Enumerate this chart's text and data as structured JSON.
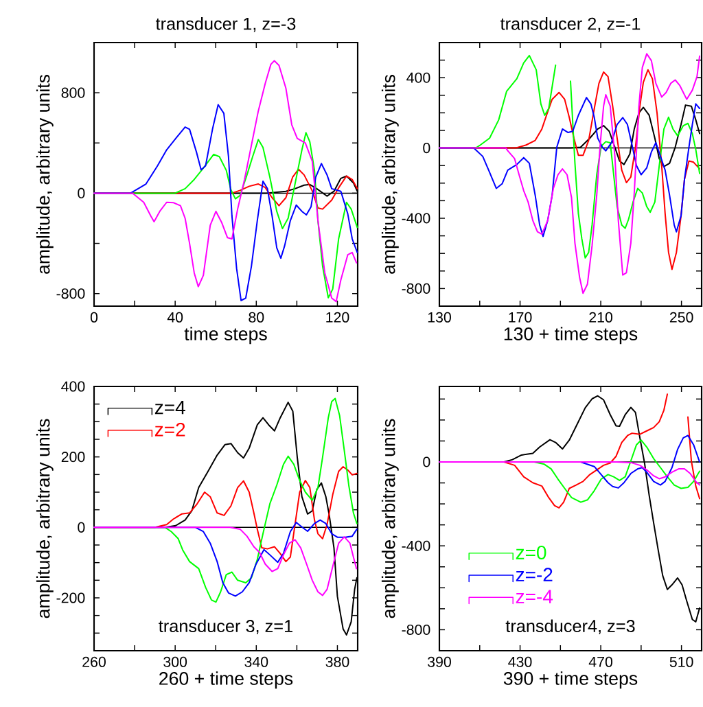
{
  "chart_data": [
    {
      "type": "line",
      "title": "transducer 1, z=-3",
      "xlabel": "time steps",
      "ylabel": "amplitude, arbitrary units",
      "xlim": [
        0,
        130
      ],
      "ylim": [
        -900,
        1200
      ],
      "xticks": [
        0,
        {
          "value": 20,
          "label": null
        },
        40,
        {
          "value": 60,
          "label": null
        },
        80,
        {
          "value": 100,
          "label": null
        },
        120
      ],
      "yticks": [
        -800,
        {
          "value": -400,
          "label": null
        },
        0,
        {
          "value": 400,
          "label": null
        },
        800
      ],
      "ref_lines": [
        {
          "axis": "y",
          "value": 0,
          "color": "#000000"
        }
      ],
      "series": [
        {
          "color": "#000000",
          "x": [
            0,
            85,
            94.6,
            99.1,
            103.6,
            106.4,
            109.8,
            114.9,
            118.3,
            121.7,
            124.5,
            127.9,
            129.8
          ],
          "values": [
            0,
            0,
            15,
            36,
            64,
            69,
            36,
            -24,
            15,
            118,
            136,
            82,
            15
          ]
        },
        {
          "color": "#ff0000",
          "x": [
            0,
            68,
            72,
            76.5,
            81,
            84.4,
            87.8,
            91.2,
            94.6,
            97.9,
            100.8,
            103.6,
            107.6,
            110.4,
            112.7,
            117.2,
            121.1,
            124.5,
            127.3,
            129.8
          ],
          "values": [
            0,
            0,
            22,
            55,
            73,
            45,
            -36,
            -100,
            -36,
            127,
            191,
            145,
            18,
            -118,
            -127,
            -55,
            55,
            136,
            109,
            36
          ]
        },
        {
          "color": "#00ff00",
          "x": [
            0,
            40,
            44.9,
            49.4,
            53.9,
            59,
            61.8,
            65.2,
            67.5,
            69.7,
            72,
            75.4,
            78.2,
            81,
            83.3,
            86.7,
            90.1,
            92.9,
            95.7,
            99.1,
            102.5,
            104.5,
            106.4,
            108.7,
            110.4,
            112.7,
            115.5,
            117.7,
            120.6,
            124.5,
            126.8,
            129.8
          ],
          "values": [
            0,
            0,
            36,
            109,
            200,
            309,
            291,
            182,
            27,
            -45,
            -18,
            145,
            291,
            427,
            364,
            127,
            -145,
            -282,
            -200,
            73,
            345,
            482,
            409,
            182,
            -218,
            -582,
            -833,
            -764,
            -364,
            -73,
            -127,
            -273
          ]
        },
        {
          "color": "#0000ff",
          "x": [
            0,
            18,
            25.6,
            31.3,
            35.8,
            40.3,
            44.9,
            47.1,
            50.5,
            52.8,
            55,
            58.4,
            61.2,
            64,
            66.3,
            68,
            70.3,
            72.5,
            74.8,
            77.6,
            80.5,
            83.3,
            85.5,
            87.8,
            90.1,
            92.1,
            94,
            96.8,
            99.7,
            102.5,
            104.7,
            107,
            109.3,
            112.1,
            114.9,
            117.2,
            121.7,
            125.1,
            127.3,
            129.8
          ],
          "values": [
            0,
            0,
            73,
            218,
            345,
            436,
            527,
            509,
            327,
            185,
            218,
            509,
            705,
            636,
            291,
            -182,
            -600,
            -855,
            -836,
            -582,
            -218,
            95,
            36,
            -182,
            -436,
            -518,
            -418,
            -218,
            -95,
            -145,
            -173,
            -109,
            127,
            236,
            145,
            36,
            15,
            -164,
            -364,
            -473
          ]
        },
        {
          "color": "#ff00ff",
          "x": [
            0,
            19,
            24.5,
            28,
            29.6,
            32.4,
            35.8,
            39.2,
            42.6,
            44.9,
            47.1,
            49.4,
            51.4,
            53.9,
            57.3,
            60.1,
            63,
            65.8,
            68,
            70.8,
            74.2,
            77.6,
            81,
            84.4,
            87.2,
            88.9,
            91.2,
            94.6,
            97.5,
            100.2,
            104.2,
            107.6,
            110.4,
            113.8,
            117.2,
            119.4,
            121.7,
            125.1,
            127.3,
            129.4
          ],
          "values": [
            0,
            0,
            -73,
            -182,
            -227,
            -145,
            -73,
            -76,
            -100,
            -200,
            -400,
            -636,
            -745,
            -655,
            -255,
            -145,
            -236,
            -355,
            -364,
            -127,
            109,
            382,
            655,
            873,
            1027,
            1055,
            1018,
            836,
            545,
            436,
            400,
            255,
            -218,
            -636,
            -836,
            -864,
            -691,
            -491,
            -473,
            -555
          ]
        }
      ]
    },
    {
      "type": "line",
      "title": "transducer 2, z=-1",
      "xlabel": "130 + time steps",
      "ylabel": "amplitude, arbitrary units",
      "xlim": [
        130,
        260
      ],
      "ylim": [
        -900,
        600
      ],
      "xticks": [
        130,
        {
          "value": 150,
          "label": null
        },
        170,
        {
          "value": 190,
          "label": null
        },
        210,
        {
          "value": 230,
          "label": null
        },
        250
      ],
      "yticks": [
        -800,
        {
          "value": -700,
          "label": null
        },
        {
          "value": -600,
          "label": null
        },
        {
          "value": -500,
          "label": null
        },
        -400,
        {
          "value": -300,
          "label": null
        },
        {
          "value": -200,
          "label": null
        },
        {
          "value": -100,
          "label": null
        },
        0,
        {
          "value": 100,
          "label": null
        },
        {
          "value": 200,
          "label": null
        },
        {
          "value": 300,
          "label": null
        },
        400,
        {
          "value": 500,
          "label": null
        }
      ],
      "ref_lines": [
        {
          "axis": "y",
          "value": 0,
          "color": "#000000"
        }
      ],
      "series": [
        {
          "color": "#000000",
          "x": [
            130,
            195,
            200,
            204.6,
            208.5,
            211.4,
            214.2,
            217,
            219.3,
            221.5,
            224.4,
            226.6,
            228.9,
            231.1,
            234,
            236.8,
            239,
            241.3,
            244.1,
            246.9,
            249.8,
            252,
            254.9,
            257.1,
            259
          ],
          "values": [
            0,
            0,
            4,
            56,
            108,
            127,
            95,
            4,
            -74,
            -94,
            -35,
            108,
            199,
            231,
            186,
            56,
            -61,
            -106,
            -87,
            4,
            134,
            244,
            238,
            160,
            82
          ]
        },
        {
          "color": "#ff0000",
          "x": [
            130,
            168,
            173,
            177.5,
            180.8,
            183.1,
            185.9,
            189.3,
            192.1,
            194.4,
            196.7,
            198.9,
            201.2,
            204,
            206.8,
            209.1,
            211.4,
            213.6,
            215.9,
            218.1,
            220.4,
            222.7,
            224.9,
            227.2,
            229.4,
            231.1,
            233.4,
            235.6,
            237.9,
            240.2,
            241.9,
            243.6,
            245.3,
            247.5,
            249.8,
            251.5,
            253.7,
            256,
            259
          ],
          "values": [
            0,
            0,
            17,
            43,
            108,
            186,
            277,
            316,
            277,
            173,
            56,
            -42,
            -42,
            43,
            225,
            368,
            432,
            406,
            238,
            56,
            -126,
            -197,
            -165,
            4,
            238,
            374,
            445,
            394,
            199,
            -100,
            -373,
            -594,
            -691,
            -594,
            -386,
            -178,
            -74,
            -81,
            -119
          ]
        },
        {
          "color": "#00ff00",
          "x": [
            130,
            148,
            150.3,
            154.9,
            159.4,
            163.3,
            168.4,
            171.8,
            174.6,
            178,
            180.3,
            182.2,
            184.2,
            187.6,
            189.9,
            191.8,
            193.8,
            195,
            197.2,
            198.9,
            200.6,
            202.3,
            204,
            205.7,
            208,
            210.2,
            212.5,
            214.7,
            216.4,
            218.1,
            220.4,
            222.1,
            223.8,
            226,
            228.3,
            230.6,
            232.8,
            234.5,
            236.8,
            239,
            241.3,
            243.6,
            245.8,
            248.1,
            250.9,
            253.2,
            255.4,
            257.1,
            259
          ],
          "values": [
            0,
            0,
            17,
            56,
            160,
            322,
            394,
            484,
            526,
            445,
            251,
            186,
            225,
            471,
            null,
            null,
            null,
            380,
            -87,
            -373,
            -516,
            -626,
            -594,
            -438,
            -152,
            10,
            36,
            30,
            -152,
            -334,
            -438,
            -457,
            -405,
            -308,
            -230,
            -256,
            -334,
            -366,
            -308,
            -100,
            108,
            175,
            108,
            69,
            127,
            140,
            82,
            -9,
            -145
          ]
        },
        {
          "color": "#0000ff",
          "x": [
            130,
            147,
            151.5,
            154.9,
            158.2,
            161.1,
            163.9,
            168.4,
            171.8,
            174.6,
            177.5,
            179.7,
            181.4,
            183.7,
            185.9,
            188.2,
            191,
            193.8,
            196.1,
            198.9,
            202.9,
            205.1,
            206.8,
            208.5,
            210.8,
            212.5,
            215.3,
            218.1,
            220.9,
            223.2,
            225.5,
            227.7,
            230,
            232.8,
            235.1,
            237.3,
            239.6,
            241.9,
            244.1,
            246.4,
            247.5,
            249.8,
            251.5,
            253.7,
            255.4,
            257.1,
            259
          ],
          "values": [
            0,
            0,
            -48,
            -139,
            -230,
            -204,
            -126,
            -94,
            -55,
            -87,
            -269,
            -438,
            -503,
            -412,
            -269,
            4,
            108,
            88,
            95,
            186,
            287,
            251,
            173,
            56,
            4,
            -16,
            30,
            134,
            173,
            134,
            17,
            -100,
            -152,
            -113,
            -22,
            30,
            -48,
            -126,
            -269,
            -438,
            -477,
            -386,
            -178,
            4,
            134,
            251,
            225
          ]
        },
        {
          "color": "#ff00ff",
          "x": [
            130,
            163,
            163.9,
            167.3,
            169.5,
            171.8,
            174,
            176.3,
            178.6,
            180.8,
            183.7,
            186.5,
            188.8,
            191,
            193.3,
            195.5,
            197.2,
            199.5,
            201.2,
            203.4,
            205.7,
            208,
            209.7,
            211.4,
            212.5,
            214.7,
            217,
            218.7,
            220.9,
            222.7,
            224.9,
            226.6,
            228.9,
            230.6,
            232.8,
            235.1,
            237.3,
            240.2,
            242.4,
            244.7,
            246.9,
            249.2,
            252.6,
            255.4,
            257.7,
            259
          ],
          "values": [
            0,
            0,
            -16,
            -61,
            -152,
            -243,
            -308,
            -412,
            -477,
            -490,
            -412,
            -230,
            -152,
            -119,
            -152,
            -282,
            -542,
            -736,
            -827,
            -775,
            -555,
            -269,
            17,
            238,
            303,
            238,
            -48,
            -412,
            -723,
            -710,
            -542,
            -256,
            238,
            458,
            536,
            497,
            368,
            290,
            316,
            368,
            387,
            355,
            277,
            329,
            406,
            523
          ]
        }
      ]
    },
    {
      "type": "line",
      "title": "transducer 3, z=1",
      "xlabel": "260 + time steps",
      "ylabel": "amplitude, arbitrary units",
      "xlim": [
        260,
        390
      ],
      "ylim": [
        -350,
        400
      ],
      "legend": "top left",
      "xticks": [
        260,
        {
          "value": 280,
          "label": null
        },
        300,
        {
          "value": 320,
          "label": null
        },
        340,
        {
          "value": 360,
          "label": null
        },
        380
      ],
      "yticks": [
        {
          "value": -300,
          "label": null
        },
        {
          "value": -250,
          "label": null
        },
        -200,
        {
          "value": -150,
          "label": null
        },
        {
          "value": -100,
          "label": null
        },
        {
          "value": -50,
          "label": null
        },
        0,
        {
          "value": 50,
          "label": null
        },
        {
          "value": 100,
          "label": null
        },
        {
          "value": 150,
          "label": null
        },
        200,
        {
          "value": 250,
          "label": null
        },
        {
          "value": 300,
          "label": null
        },
        {
          "value": 350,
          "label": null
        },
        400
      ],
      "ref_lines": [
        {
          "axis": "y",
          "value": 0,
          "color": "#000000"
        }
      ],
      "series": [
        {
          "name": "z=4",
          "color": "#000000",
          "x": [
            260,
            295,
            300.3,
            304.9,
            308.2,
            311.6,
            316.2,
            320.7,
            324.6,
            327.5,
            330.8,
            333.7,
            336.5,
            340.5,
            343.3,
            346.1,
            349,
            351.8,
            355.7,
            358,
            360.2,
            362.5,
            365.3,
            367.6,
            369.8,
            372.1,
            374.3,
            376,
            378.3,
            380,
            382.8,
            384.5,
            386.8,
            388.5,
            389.6
          ],
          "values": [
            0,
            0,
            5,
            21,
            47,
            113,
            159,
            205,
            235,
            238,
            212,
            197,
            225,
            291,
            311,
            291,
            274,
            311,
            355,
            330,
            199,
            87,
            38,
            47,
            107,
            126,
            87,
            34,
            -58,
            -196,
            -288,
            -305,
            -268,
            -176,
            -143
          ]
        },
        {
          "name": "z=2",
          "color": "#ff0000",
          "x": [
            260,
            290,
            295.8,
            299.2,
            303.2,
            307.1,
            310.5,
            314.5,
            317.3,
            320.7,
            324.1,
            327.5,
            330.8,
            333.7,
            336.5,
            338.8,
            340.5,
            342.7,
            345.5,
            349,
            351.8,
            354.6,
            356.8,
            359.1,
            361.4,
            364.2,
            366.4,
            368.7,
            370.4,
            372.7,
            374.9,
            377.7,
            380.6,
            382.8,
            385.1,
            387.3,
            389.6
          ],
          "values": [
            0,
            0,
            8,
            24,
            38,
            41,
            64,
            100,
            87,
            41,
            34,
            61,
            113,
            132,
            100,
            41,
            -5,
            -58,
            -61,
            -55,
            -74,
            -97,
            -84,
            8,
            100,
            133,
            113,
            21,
            -18,
            -32,
            8,
            93,
            159,
            172,
            163,
            149,
            153
          ]
        },
        {
          "color": "#00ff00",
          "x": [
            260,
            295,
            298.1,
            301.5,
            303.7,
            307.1,
            311.6,
            315,
            317.9,
            320.1,
            322.4,
            325.2,
            328,
            330.8,
            334.8,
            337.6,
            340.5,
            343.3,
            346.7,
            350.1,
            353.4,
            355.7,
            358.5,
            361.4,
            364.2,
            367.6,
            370.4,
            372.7,
            375.5,
            377.2,
            378.9,
            381.1,
            383.4,
            385.6,
            387.9,
            389.6
          ],
          "values": [
            0,
            0,
            -12,
            -32,
            -64,
            -97,
            -117,
            -170,
            -206,
            -212,
            -183,
            -134,
            -127,
            -150,
            -157,
            -143,
            -91,
            -18,
            67,
            120,
            179,
            202,
            179,
            133,
            100,
            77,
            113,
            199,
            311,
            357,
            366,
            317,
            218,
            120,
            41,
            11
          ]
        },
        {
          "color": "#0000ff",
          "x": [
            260,
            310,
            313.9,
            317.3,
            320.7,
            323.5,
            326.3,
            329.7,
            333.1,
            336.5,
            339.9,
            343.8,
            346.7,
            350.6,
            353.4,
            356.8,
            359.7,
            362.5,
            365.3,
            368.7,
            371.5,
            374.3,
            377.2,
            380,
            383.9,
            387.3,
            389.6
          ],
          "values": [
            0,
            0,
            -12,
            -45,
            -97,
            -157,
            -186,
            -195,
            -183,
            -157,
            -104,
            -63,
            -78,
            -99,
            -74,
            -12,
            14,
            1,
            -11,
            11,
            21,
            11,
            -18,
            -28,
            -28,
            -25,
            -5
          ]
        },
        {
          "color": "#ff00ff",
          "x": [
            260,
            327,
            332,
            335.4,
            338.8,
            341.6,
            344.4,
            347.8,
            350.6,
            353.4,
            356.3,
            359.1,
            361.9,
            364.8,
            367.6,
            370.4,
            372.7,
            374.9,
            377.7,
            380.6,
            383.4,
            386.2,
            387.9,
            389.4
          ],
          "values": [
            0,
            0,
            -5,
            -25,
            -55,
            -71,
            -104,
            -125,
            -117,
            -78,
            -45,
            -35,
            -58,
            -104,
            -150,
            -183,
            -193,
            -176,
            -111,
            -45,
            -27,
            -45,
            -84,
            -117
          ]
        }
      ]
    },
    {
      "type": "line",
      "title": "transducer4, z=3",
      "xlabel": "390 + time steps",
      "ylabel": "amplitude, arbitrary units",
      "xlim": [
        390,
        520
      ],
      "ylim": [
        -900,
        360
      ],
      "legend": "bottom left",
      "xticks": [
        390,
        {
          "value": 410,
          "label": null
        },
        430,
        {
          "value": 450,
          "label": null
        },
        470,
        {
          "value": 490,
          "label": null
        },
        510
      ],
      "yticks": [
        -800,
        {
          "value": -700,
          "label": null
        },
        {
          "value": -600,
          "label": null
        },
        {
          "value": -500,
          "label": null
        },
        -400,
        {
          "value": -300,
          "label": null
        },
        {
          "value": -200,
          "label": null
        },
        {
          "value": -100,
          "label": null
        },
        0,
        {
          "value": 100,
          "label": null
        },
        {
          "value": 200,
          "label": null
        },
        {
          "value": 300,
          "label": null
        }
      ],
      "ref_lines": [
        {
          "axis": "y",
          "value": 0,
          "color": "#000000"
        }
      ],
      "series": [
        {
          "color": "#000000",
          "x": [
            390,
            422,
            426.2,
            430.7,
            436.3,
            439.7,
            444.8,
            447.6,
            451,
            454.4,
            457.8,
            462.3,
            465.7,
            468.5,
            471.4,
            474.7,
            477.6,
            479.3,
            482.1,
            484.9,
            487.2,
            489.4,
            491.7,
            494,
            496.2,
            498.5,
            500.7,
            503,
            505.3,
            508.1,
            510.3,
            512.6,
            515.4,
            517.1,
            519
          ],
          "values": [
            0,
            0,
            11,
            33,
            41,
            71,
            106,
            93,
            62,
            104,
            170,
            258,
            301,
            315,
            296,
            225,
            172,
            170,
            225,
            260,
            236,
            115,
            -5,
            -159,
            -290,
            -422,
            -542,
            -608,
            -586,
            -553,
            -586,
            -663,
            -751,
            -762,
            -696
          ]
        },
        {
          "color": "#ff0000",
          "x": [
            390,
            422,
            427.3,
            431.8,
            436.3,
            440.8,
            444.2,
            447.1,
            449.3,
            451.6,
            454.4,
            457.8,
            461.2,
            464.6,
            468,
            471.4,
            474.7,
            477.6,
            480.4,
            483.3,
            485.5,
            489.4,
            492.8,
            496.2,
            499,
            501.3,
            503,
            503.9,
            507.5,
            510.9,
            513.2,
            514.9,
            517.1,
            519
          ],
          "values": [
            0,
            0,
            -16,
            -71,
            -99,
            -115,
            -170,
            -208,
            -219,
            -192,
            -126,
            -110,
            -93,
            -60,
            -38,
            -16,
            -5,
            27,
            93,
            126,
            137,
            132,
            148,
            164,
            192,
            247,
            323,
            null,
            null,
            null,
            214,
            5,
            -115,
            -175
          ]
        },
        {
          "name": "z=0",
          "color": "#00ff00",
          "x": [
            390,
            437,
            442,
            445.4,
            448.8,
            452.1,
            455.5,
            460.1,
            463.4,
            466.8,
            470.2,
            473.6,
            476.4,
            479.3,
            482.1,
            484.9,
            487.7,
            490,
            492.8,
            496.2,
            499.6,
            503,
            506.4,
            509.8,
            513.2,
            516,
            519
          ],
          "values": [
            0,
            0,
            -11,
            -33,
            -82,
            -126,
            -170,
            -192,
            -181,
            -137,
            -82,
            -60,
            -71,
            -88,
            -71,
            5,
            82,
            104,
            71,
            16,
            -27,
            -71,
            -110,
            -126,
            -121,
            -93,
            -44
          ]
        },
        {
          "name": "z=-2",
          "color": "#0000ff",
          "x": [
            390,
            460,
            466.8,
            470.2,
            473.6,
            475.9,
            478.7,
            481.5,
            484.9,
            488.3,
            490.6,
            492.8,
            496.2,
            499.6,
            501.9,
            505.3,
            508.1,
            510.9,
            513.2,
            516,
            519
          ],
          "values": [
            0,
            0,
            -22,
            -60,
            -99,
            -117,
            -124,
            -99,
            -55,
            -33,
            -27,
            -49,
            -93,
            -110,
            -93,
            -27,
            60,
            115,
            126,
            82,
            0
          ]
        },
        {
          "name": "z=-4",
          "color": "#ff00ff",
          "x": [
            390,
            478,
            484.9,
            489.4,
            492.8,
            496.2,
            499,
            501.9,
            505.3,
            508.6,
            511.5,
            514.3,
            517.1,
            519
          ],
          "values": [
            0,
            0,
            -3,
            -16,
            -38,
            -66,
            -80,
            -71,
            -49,
            -33,
            -33,
            -55,
            -93,
            -110
          ]
        }
      ]
    }
  ]
}
